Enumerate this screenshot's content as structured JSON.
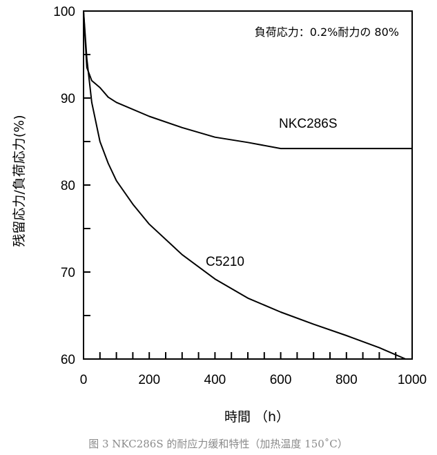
{
  "chart_data": {
    "type": "line",
    "annotation": "負荷応力：0.2%耐力の 80%",
    "xlabel": "時間 （h）",
    "ylabel": "残留応力/負荷応力(%)",
    "xlim": [
      0,
      1000
    ],
    "ylim": [
      60,
      100
    ],
    "x_ticks": [
      0,
      200,
      400,
      600,
      800,
      1000
    ],
    "x_tick_labels": [
      "0",
      "200",
      "400",
      "600",
      "800",
      "1000"
    ],
    "y_ticks": [
      60,
      70,
      80,
      90,
      100
    ],
    "y_tick_labels": [
      "60",
      "70",
      "80",
      "90",
      "100"
    ],
    "grid": false,
    "legend": "inline labels",
    "series": [
      {
        "name": "NKC286S",
        "points": [
          [
            0,
            100
          ],
          [
            10,
            93.5
          ],
          [
            25,
            92.0
          ],
          [
            50,
            91.2
          ],
          [
            75,
            90.1
          ],
          [
            100,
            89.5
          ],
          [
            200,
            87.9
          ],
          [
            300,
            86.6
          ],
          [
            400,
            85.5
          ],
          [
            500,
            84.9
          ],
          [
            600,
            84.2
          ],
          [
            700,
            84.2
          ],
          [
            800,
            84.2
          ],
          [
            900,
            84.2
          ],
          [
            1000,
            84.2
          ]
        ]
      },
      {
        "name": "C5210",
        "points": [
          [
            0,
            100
          ],
          [
            10,
            94.5
          ],
          [
            25,
            89.5
          ],
          [
            50,
            85.0
          ],
          [
            75,
            82.5
          ],
          [
            100,
            80.5
          ],
          [
            150,
            77.8
          ],
          [
            200,
            75.5
          ],
          [
            300,
            72.0
          ],
          [
            400,
            69.2
          ],
          [
            500,
            67.0
          ],
          [
            600,
            65.4
          ],
          [
            700,
            64.0
          ],
          [
            800,
            62.7
          ],
          [
            900,
            61.3
          ],
          [
            980,
            60.0
          ]
        ]
      }
    ]
  },
  "caption": "图 3 NKC286S 的耐应力缓和特性（加热温度 150˚C）"
}
